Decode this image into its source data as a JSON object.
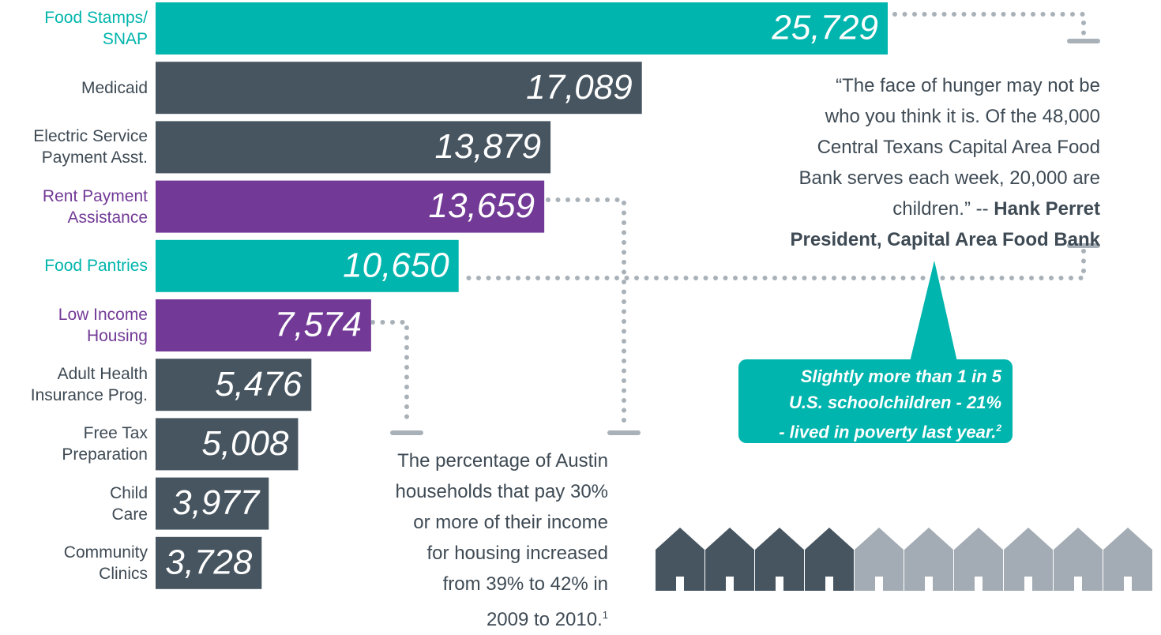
{
  "chart_data": {
    "type": "bar",
    "orientation": "horizontal",
    "categories": [
      "Food Stamps/\nSNAP",
      "Medicaid",
      "Electric Service\nPayment Asst.",
      "Rent Payment\nAssistance",
      "Food Pantries",
      "Low Income\nHousing",
      "Adult Health\nInsurance Prog.",
      "Free Tax\nPreparation",
      "Child\nCare",
      "Community\nClinics"
    ],
    "values": [
      25729,
      17089,
      13879,
      13659,
      10650,
      7574,
      5476,
      5008,
      3977,
      3728
    ],
    "value_labels": [
      "25,729",
      "17,089",
      "13,879",
      "13,659",
      "10,650",
      "7,574",
      "5,476",
      "5,008",
      "3,977",
      "3,728"
    ],
    "colors": [
      "#00b5ad",
      "#475560",
      "#475560",
      "#723a96",
      "#00b5ad",
      "#723a96",
      "#475560",
      "#475560",
      "#475560",
      "#475560"
    ],
    "annotations": {
      "quote": {
        "text": "“The face of hunger may not be\nwho you think it is. Of the 48,000\nCentral Texans Capital Area Food\nBank serves each week, 20,000 are\nchildren.” -- ",
        "name": "Hank Perret",
        "title": "President, Capital Area Food Bank"
      },
      "housing_note": {
        "text": "The percentage of Austin\nhouseholds that pay 30%\nor more of their income\nfor housing increased\nfrom 39% to 42% in\n2009 to 2010.",
        "footnote": "1"
      },
      "poverty_callout": {
        "text": "Slightly more than 1 in 5\nU.S. schoolchildren - 21%\n- lived in poverty last year.",
        "footnote": "2"
      }
    }
  }
}
